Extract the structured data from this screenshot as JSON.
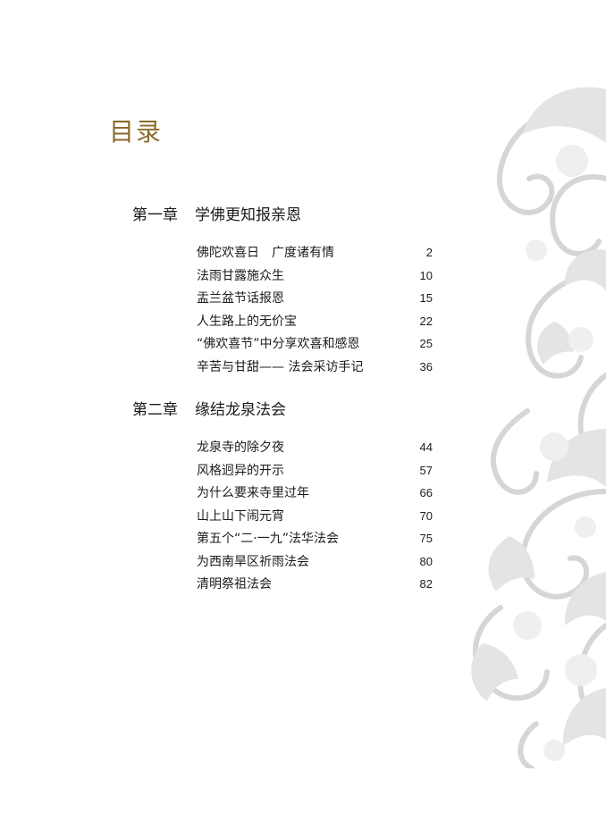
{
  "title": "目录",
  "chapters": [
    {
      "number": "第一章",
      "name": "学佛更知报亲恩",
      "entries": [
        {
          "title": "佛陀欢喜日　广度诸有情",
          "page": "2"
        },
        {
          "title": "法雨甘露施众生",
          "page": "10"
        },
        {
          "title": "盂兰盆节话报恩",
          "page": "15"
        },
        {
          "title": "人生路上的无价宝",
          "page": "22"
        },
        {
          "title": "“佛欢喜节”中分享欢喜和感恩",
          "page": "25"
        },
        {
          "title": "辛苦与甘甜—— 法会采访手记",
          "page": "36"
        }
      ]
    },
    {
      "number": "第二章",
      "name": "缘结龙泉法会",
      "entries": [
        {
          "title": "龙泉寺的除夕夜",
          "page": "44"
        },
        {
          "title": "风格迥异的开示",
          "page": "57"
        },
        {
          "title": "为什么要来寺里过年",
          "page": "66"
        },
        {
          "title": "山上山下闹元宵",
          "page": "70"
        },
        {
          "title": "第五个“二·一九”法华法会",
          "page": "75"
        },
        {
          "title": "为西南旱区祈雨法会",
          "page": "80"
        },
        {
          "title": "清明祭祖法会",
          "page": "82"
        }
      ]
    }
  ],
  "colors": {
    "title": "#8a6a2c",
    "ornament": "#dcdcdc"
  },
  "icons": {
    "ornament": "floral-cloud-ornament"
  }
}
